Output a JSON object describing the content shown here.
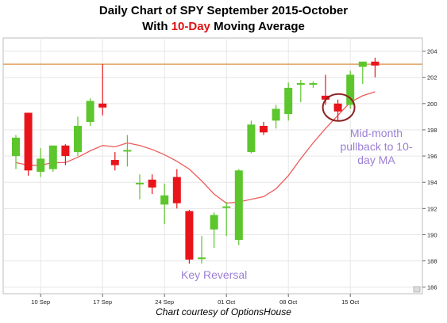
{
  "title_line1": "Daily Chart of SPY September 2015-October",
  "title_line2_prefix": "With ",
  "title_line2_highlight": "10-Day",
  "title_line2_suffix": " Moving Average",
  "credit": "Chart courtesy of OptionsHouse",
  "colors": {
    "up": "#5cc62c",
    "down": "#e8141a",
    "ma": "#f05a5a",
    "resistance": "#e0a060",
    "circle": "#8b2222",
    "annotation": "#9b7fd4",
    "grid": "#e6e6e6"
  },
  "annotations": {
    "key_reversal": "Key Reversal",
    "pullback_lines": [
      "Mid-month",
      "pullback to 10-",
      "day MA"
    ]
  },
  "chart_data": {
    "type": "candlestick",
    "ylim": [
      185.5,
      205
    ],
    "y_ticks": [
      186,
      188,
      190,
      192,
      194,
      196,
      198,
      200,
      202,
      204
    ],
    "x_tick_labels": [
      {
        "label": "10 Sep",
        "index": 2
      },
      {
        "label": "17 Sep",
        "index": 7
      },
      {
        "label": "24 Sep",
        "index": 12
      },
      {
        "label": "01 Oct",
        "index": 17
      },
      {
        "label": "08 Oct",
        "index": 22
      },
      {
        "label": "15 Oct",
        "index": 27
      }
    ],
    "resistance_level": 203.0,
    "candles": [
      {
        "o": 196.0,
        "h": 197.6,
        "l": 195.0,
        "c": 197.4
      },
      {
        "o": 199.3,
        "h": 199.3,
        "l": 194.5,
        "c": 194.9
      },
      {
        "o": 194.8,
        "h": 196.6,
        "l": 194.4,
        "c": 195.8
      },
      {
        "o": 195.0,
        "h": 196.8,
        "l": 194.8,
        "c": 196.8
      },
      {
        "o": 196.8,
        "h": 196.9,
        "l": 195.3,
        "c": 196.0
      },
      {
        "o": 196.3,
        "h": 199.0,
        "l": 196.0,
        "c": 198.3
      },
      {
        "o": 198.6,
        "h": 200.4,
        "l": 198.3,
        "c": 200.2
      },
      {
        "o": 200.0,
        "h": 203.0,
        "l": 199.1,
        "c": 199.7
      },
      {
        "o": 195.7,
        "h": 196.3,
        "l": 194.9,
        "c": 195.3
      },
      {
        "o": 196.4,
        "h": 197.6,
        "l": 195.2,
        "c": 196.4
      },
      {
        "o": 193.9,
        "h": 194.6,
        "l": 192.7,
        "c": 193.9
      },
      {
        "o": 194.2,
        "h": 194.6,
        "l": 193.1,
        "c": 193.6
      },
      {
        "o": 192.3,
        "h": 193.9,
        "l": 190.8,
        "c": 193.0
      },
      {
        "o": 194.4,
        "h": 195.0,
        "l": 192.0,
        "c": 192.4
      },
      {
        "o": 191.8,
        "h": 191.9,
        "l": 187.8,
        "c": 188.1
      },
      {
        "o": 188.2,
        "h": 189.9,
        "l": 187.8,
        "c": 188.2
      },
      {
        "o": 190.4,
        "h": 191.7,
        "l": 189.0,
        "c": 191.5
      },
      {
        "o": 192.1,
        "h": 192.5,
        "l": 189.9,
        "c": 192.1
      },
      {
        "o": 189.6,
        "h": 195.0,
        "l": 189.2,
        "c": 194.9
      },
      {
        "o": 196.3,
        "h": 198.7,
        "l": 196.2,
        "c": 198.4
      },
      {
        "o": 198.3,
        "h": 198.6,
        "l": 197.6,
        "c": 197.8
      },
      {
        "o": 198.7,
        "h": 199.9,
        "l": 198.1,
        "c": 199.6
      },
      {
        "o": 199.2,
        "h": 201.6,
        "l": 198.7,
        "c": 201.2
      },
      {
        "o": 201.5,
        "h": 201.8,
        "l": 200.1,
        "c": 201.5
      },
      {
        "o": 201.4,
        "h": 201.7,
        "l": 201.2,
        "c": 201.5
      },
      {
        "o": 200.6,
        "h": 202.2,
        "l": 199.9,
        "c": 200.3
      },
      {
        "o": 200.0,
        "h": 200.3,
        "l": 198.7,
        "c": 199.4
      },
      {
        "o": 199.9,
        "h": 202.5,
        "l": 199.6,
        "c": 202.2
      },
      {
        "o": 202.8,
        "h": 203.2,
        "l": 201.5,
        "c": 203.2
      },
      {
        "o": 203.2,
        "h": 203.5,
        "l": 202.0,
        "c": 202.9
      }
    ],
    "ma10": [
      {
        "i": 0,
        "v": 195.5
      },
      {
        "i": 1,
        "v": 195.3
      },
      {
        "i": 2,
        "v": 195.3
      },
      {
        "i": 3,
        "v": 195.5
      },
      {
        "i": 4,
        "v": 195.5
      },
      {
        "i": 5,
        "v": 195.9
      },
      {
        "i": 6,
        "v": 196.4
      },
      {
        "i": 7,
        "v": 196.8
      },
      {
        "i": 8,
        "v": 196.7
      },
      {
        "i": 9,
        "v": 197.0
      },
      {
        "i": 10,
        "v": 196.8
      },
      {
        "i": 11,
        "v": 196.5
      },
      {
        "i": 12,
        "v": 196.1
      },
      {
        "i": 13,
        "v": 195.6
      },
      {
        "i": 14,
        "v": 195.0
      },
      {
        "i": 15,
        "v": 194.1
      },
      {
        "i": 16,
        "v": 193.1
      },
      {
        "i": 17,
        "v": 192.4
      },
      {
        "i": 18,
        "v": 192.5
      },
      {
        "i": 19,
        "v": 192.7
      },
      {
        "i": 20,
        "v": 192.9
      },
      {
        "i": 21,
        "v": 193.5
      },
      {
        "i": 22,
        "v": 194.5
      },
      {
        "i": 23,
        "v": 195.8
      },
      {
        "i": 24,
        "v": 197.0
      },
      {
        "i": 25,
        "v": 198.1
      },
      {
        "i": 26,
        "v": 199.1
      },
      {
        "i": 27,
        "v": 200.1
      },
      {
        "i": 28,
        "v": 200.6
      },
      {
        "i": 29,
        "v": 200.9
      }
    ],
    "highlight_index": 26
  }
}
